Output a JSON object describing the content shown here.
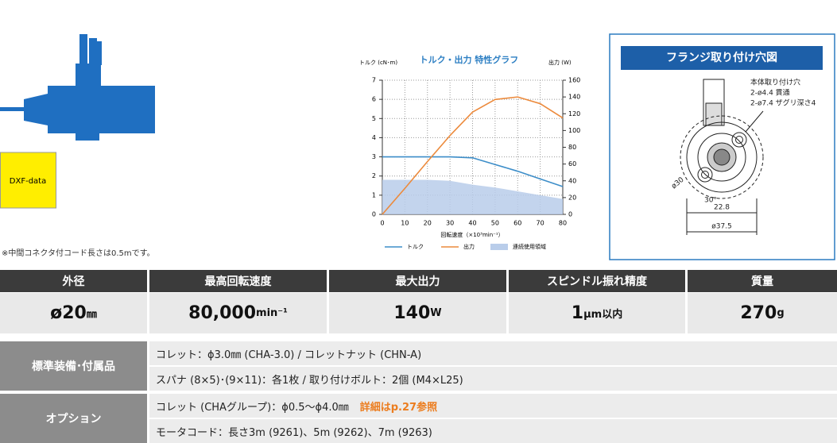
{
  "product": {
    "dxf_button": "DXF-data",
    "note": "※中間コネクタ付コード長さは0.5mです。"
  },
  "chart_data": {
    "type": "line",
    "title": "トルク・出力 特性グラフ",
    "y_label": "トルク (cN･m)",
    "y2_label": "出力 (W)",
    "x_label": "回転速度（×10³min⁻¹）",
    "x": [
      0,
      10,
      20,
      30,
      40,
      50,
      60,
      70,
      80
    ],
    "xlim": [
      0,
      80
    ],
    "xticks": [
      0,
      10,
      20,
      30,
      40,
      50,
      60,
      70,
      80
    ],
    "ylim": [
      0,
      7
    ],
    "yticks": [
      0,
      1,
      2,
      3,
      4,
      5,
      6,
      7
    ],
    "y2lim": [
      0,
      160
    ],
    "y2ticks": [
      0,
      20,
      40,
      60,
      80,
      100,
      120,
      140,
      160
    ],
    "grid": true,
    "series": [
      {
        "name": "トルク",
        "color": "#3d8ec9",
        "values": [
          3,
          3,
          3,
          3,
          2.95,
          2.6,
          2.25,
          1.85,
          1.45
        ]
      },
      {
        "name": "出力",
        "color": "#ec8a3c",
        "axis": "y2",
        "values": [
          0,
          31,
          63,
          94,
          122,
          137,
          140,
          132,
          115
        ]
      },
      {
        "name": "連続使用領域",
        "color": "#b9cdea",
        "kind": "area",
        "values": [
          1.8,
          1.8,
          1.8,
          1.75,
          1.55,
          1.4,
          1.2,
          1.0,
          0.8
        ]
      }
    ]
  },
  "flange": {
    "title": "フランジ取り付け穴図",
    "hole_label": "本体取り付け穴",
    "hole_spec_1": "2-ø4.4 貫通",
    "hole_spec_2": "2-ø7.4 ザグリ深さ4",
    "pitch": "ø30",
    "angle": "30°",
    "offset": "22.8",
    "flange_dia": "ø37.5"
  },
  "specs": {
    "headers": [
      "外径",
      "最高回転速度",
      "最大出力",
      "スピンドル振れ精度",
      "質量"
    ],
    "values": [
      {
        "main": "ø20",
        "unit": "㎜"
      },
      {
        "main": "80,000",
        "unit": "min⁻¹"
      },
      {
        "main": "140",
        "unit": "W"
      },
      {
        "main": "1",
        "unit": "μm以内"
      },
      {
        "main": "270",
        "unit": "g"
      }
    ]
  },
  "details": [
    {
      "label": "標準装備･付属品",
      "lines": [
        {
          "text": "コレット：ϕ3.0㎜ (CHA-3.0) / コレットナット (CHN-A)"
        },
        {
          "text": "スパナ (8×5)･(9×11)：各1枚 / 取り付けボルト：2個 (M4×L25)"
        }
      ]
    },
    {
      "label": "オプション",
      "lines": [
        {
          "text": "コレット (CHAグループ)：ϕ0.5～ϕ4.0㎜",
          "highlight": "詳細はp.27参照"
        },
        {
          "text": "モータコード：長さ3m (9261)、5m (9262)、7m (9263)"
        }
      ]
    }
  ]
}
